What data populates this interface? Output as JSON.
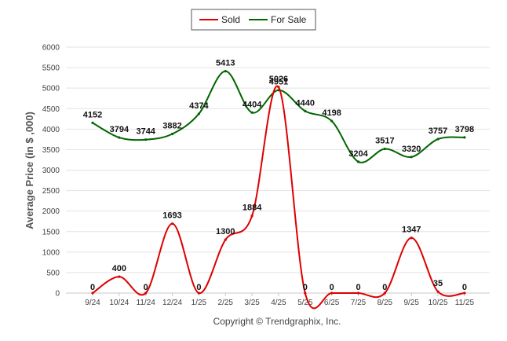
{
  "chart_data": {
    "type": "line",
    "title": "",
    "ylabel": "Average Price (in $ ,000)",
    "xlabel": "",
    "ylim": [
      0,
      6000
    ],
    "yticks": [
      0,
      500,
      1000,
      1500,
      2000,
      2500,
      3000,
      3500,
      4000,
      4500,
      5000,
      5500,
      6000
    ],
    "categories": [
      "9/24",
      "10/24",
      "11/24",
      "12/24",
      "1/25",
      "2/25",
      "3/25",
      "4/25",
      "5/25",
      "6/25",
      "7/25",
      "8/25",
      "9/25",
      "10/25",
      "11/25"
    ],
    "legend_position": "top-center",
    "grid": true,
    "series": [
      {
        "name": "Sold",
        "color": "#dd0000",
        "values": [
          0,
          400,
          0,
          1693,
          0,
          1300,
          1884,
          5026,
          0,
          0,
          0,
          0,
          1347,
          35,
          0
        ],
        "labels": [
          "0",
          "400",
          "0",
          "1693",
          "0",
          "1300",
          "1884",
          "5026",
          "0",
          "0",
          "0",
          "0",
          "1347",
          "35",
          "0"
        ]
      },
      {
        "name": "For Sale",
        "color": "#006600",
        "values": [
          4152,
          3794,
          3744,
          3882,
          4374,
          5413,
          4404,
          4951,
          4440,
          4198,
          3204,
          3517,
          3320,
          3757,
          3798
        ],
        "labels": [
          "4152",
          "3794",
          "3744",
          "3882",
          "4374",
          "5413",
          "4404",
          "4951",
          "4440",
          "4198",
          "3204",
          "3517",
          "3320",
          "3757",
          "3798"
        ]
      }
    ]
  },
  "copyright": "Copyright © Trendgraphix, Inc."
}
